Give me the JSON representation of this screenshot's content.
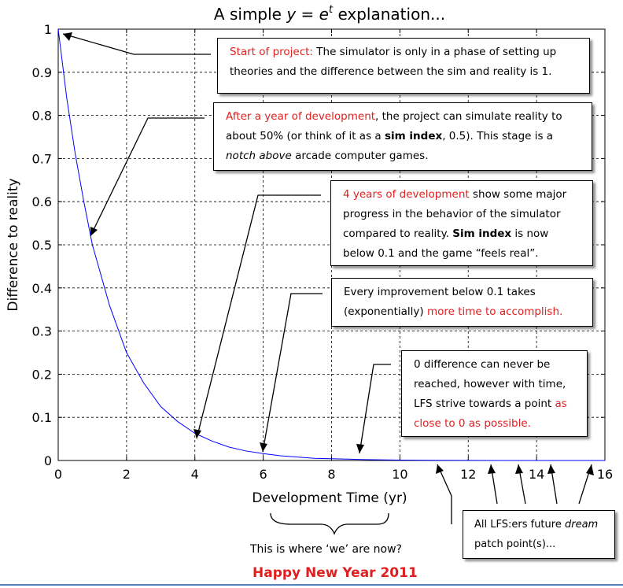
{
  "chart_data": {
    "type": "line",
    "title": "A simple y = e^t explanation...",
    "title_parts": {
      "prefix": "A simple ",
      "y": "y",
      "eq": " = ",
      "e": "e",
      "t": "t",
      "suffix": " explanation..."
    },
    "xlabel": "Development Time (yr)",
    "ylabel": "Difference to reality",
    "xlim": [
      0,
      16
    ],
    "ylim": [
      0,
      1
    ],
    "xticks": [
      "0",
      "2",
      "4",
      "6",
      "8",
      "10",
      "12",
      "14",
      "16"
    ],
    "yticks": [
      "0",
      "0.1",
      "0.2",
      "0.3",
      "0.4",
      "0.5",
      "0.6",
      "0.7",
      "0.8",
      "0.9",
      "1"
    ],
    "grid": true,
    "series": [
      {
        "color": "#0000ff",
        "x": [
          0,
          0.25,
          0.5,
          0.75,
          1,
          1.5,
          2,
          2.5,
          3,
          3.5,
          4,
          4.5,
          5,
          5.5,
          6,
          6.5,
          7,
          7.5,
          8,
          9,
          10,
          11,
          12,
          13,
          14,
          15,
          16
        ],
        "y": [
          1,
          0.84,
          0.71,
          0.6,
          0.5,
          0.36,
          0.25,
          0.18,
          0.125,
          0.09,
          0.063,
          0.045,
          0.031,
          0.022,
          0.016,
          0.011,
          0.008,
          0.005,
          0.004,
          0.002,
          0.001,
          0.0005,
          0.0002,
          0.0001,
          6e-05,
          3e-05,
          2e-05
        ]
      }
    ]
  },
  "annotations": {
    "start": {
      "lead": "Start of project:",
      "text": " The simulator is only in a phase of setting up theories and the difference between the sim and reality is 1."
    },
    "year": {
      "lead": "After a year of development",
      "t1": ", the project can simulate reality to about 50% (or think of it as a ",
      "bold": "sim index",
      "t2": ", 0.5). This stage is a ",
      "ital": "notch above",
      "t3": " arcade computer games."
    },
    "four": {
      "lead": "4 years of development",
      "t1": " show some major progress in the behavior of the simulator compared to reality. ",
      "bold": "Sim index",
      "t2": " is now below 0.1 and the game “feels real”."
    },
    "improve": {
      "t1": "Every improvement below 0.1 takes (exponentially) ",
      "red": "more time to accomplish."
    },
    "zero": {
      "t1": "0 difference can never be reached, however with time, LFS strive towards a point ",
      "red": "as close to 0 as possible."
    },
    "future": {
      "t1": "All LFS:ers future ",
      "ital": "dream",
      "t2": " patch point(s)..."
    }
  },
  "captions": {
    "now": "This is where ‘we’ are now?",
    "year": "Happy New Year 2011"
  },
  "colors": {
    "accent": "#e02020",
    "curve": "#0000ff",
    "rule": "#4f81bd"
  }
}
